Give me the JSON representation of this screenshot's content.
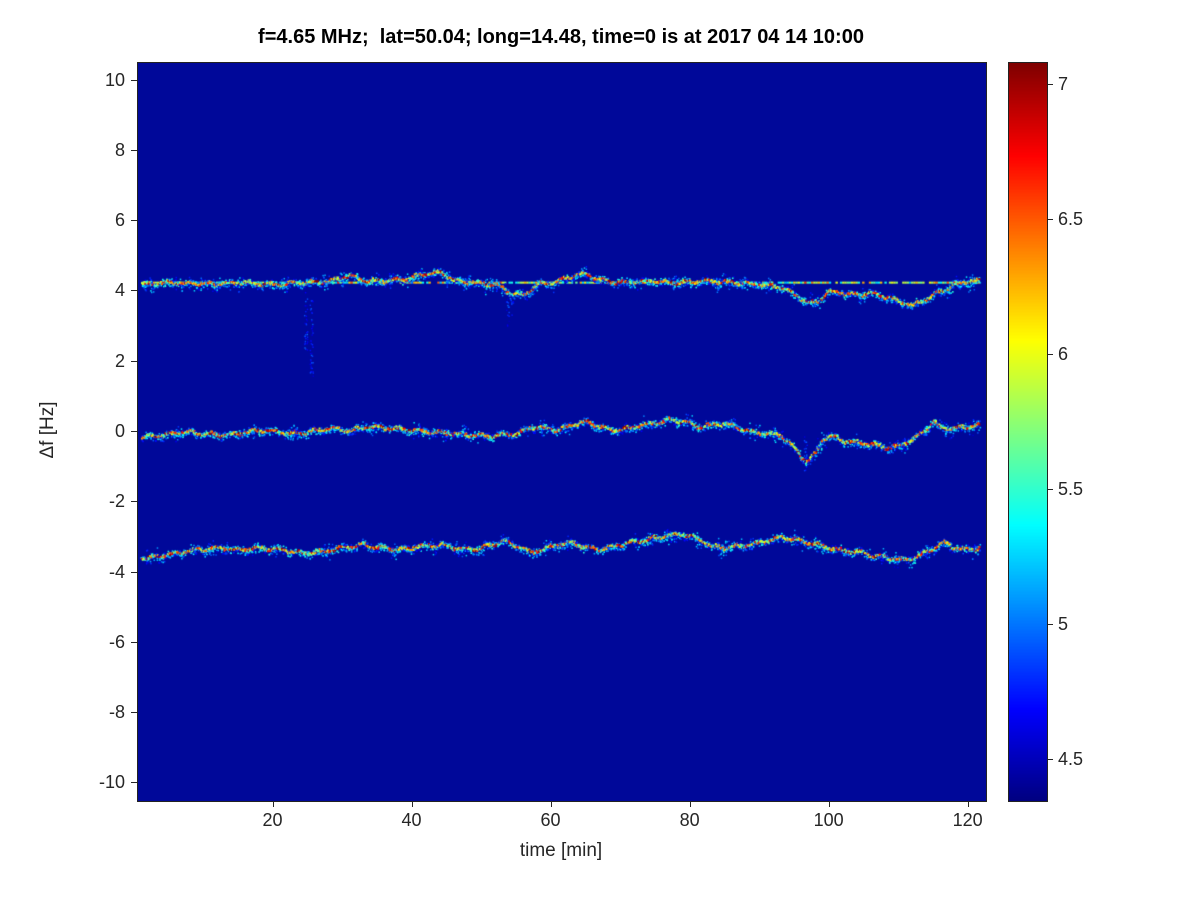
{
  "title": "f=4.65 MHz;  lat=50.04; long=14.48, time=0 is at 2017 04 14 10:00",
  "chart_data": {
    "type": "heatmap",
    "description": "Doppler shift spectrogram with three speckled traces on a dark blue background (jet colormap)",
    "xlabel": "time [min]",
    "ylabel": "Δf [Hz]",
    "xlim": [
      0.5,
      122.5
    ],
    "ylim": [
      -10.5,
      10.5
    ],
    "x_ticks": [
      20,
      40,
      60,
      80,
      100,
      120
    ],
    "y_ticks": [
      10,
      8,
      6,
      4,
      2,
      0,
      -2,
      -4,
      -6,
      -8,
      -10
    ],
    "bg_color": "#000899",
    "colorbar": {
      "min": 4.35,
      "max": 7.08,
      "ticks": [
        4.5,
        5,
        5.5,
        6,
        6.5,
        7
      ]
    },
    "traces": [
      {
        "name": "carrier-line",
        "style": "dashed",
        "points": [
          [
            1,
            4.25
          ],
          [
            121.5,
            4.25
          ]
        ]
      },
      {
        "name": "upper-trace",
        "style": "speckle",
        "points": [
          [
            1,
            4.2
          ],
          [
            5,
            4.25
          ],
          [
            10,
            4.2
          ],
          [
            15,
            4.25
          ],
          [
            20,
            4.2
          ],
          [
            25,
            4.25
          ],
          [
            28,
            4.3
          ],
          [
            31,
            4.45
          ],
          [
            33,
            4.3
          ],
          [
            36,
            4.3
          ],
          [
            39,
            4.35
          ],
          [
            42,
            4.5
          ],
          [
            44,
            4.55
          ],
          [
            46,
            4.3
          ],
          [
            49,
            4.25
          ],
          [
            52,
            4.2
          ],
          [
            54,
            3.95
          ],
          [
            56,
            3.9
          ],
          [
            58,
            4.2
          ],
          [
            61,
            4.3
          ],
          [
            63,
            4.45
          ],
          [
            65,
            4.5
          ],
          [
            67,
            4.3
          ],
          [
            70,
            4.25
          ],
          [
            74,
            4.3
          ],
          [
            78,
            4.25
          ],
          [
            82,
            4.3
          ],
          [
            86,
            4.25
          ],
          [
            90,
            4.2
          ],
          [
            93,
            4.1
          ],
          [
            95,
            3.9
          ],
          [
            97,
            3.65
          ],
          [
            98.5,
            3.75
          ],
          [
            100,
            4.0
          ],
          [
            102,
            3.95
          ],
          [
            104,
            3.9
          ],
          [
            106,
            3.95
          ],
          [
            108,
            3.85
          ],
          [
            110,
            3.7
          ],
          [
            112,
            3.6
          ],
          [
            114,
            3.8
          ],
          [
            116,
            4.0
          ],
          [
            118,
            4.2
          ],
          [
            120,
            4.3
          ],
          [
            121.5,
            4.3
          ]
        ]
      },
      {
        "name": "middle-trace",
        "style": "speckle",
        "points": [
          [
            1,
            -0.15
          ],
          [
            4,
            -0.1
          ],
          [
            7,
            0.0
          ],
          [
            10,
            -0.05
          ],
          [
            13,
            -0.1
          ],
          [
            16,
            0.0
          ],
          [
            19,
            0.05
          ],
          [
            22,
            -0.05
          ],
          [
            25,
            0.0
          ],
          [
            28,
            0.1
          ],
          [
            31,
            0.05
          ],
          [
            34,
            0.15
          ],
          [
            37,
            0.1
          ],
          [
            40,
            0.05
          ],
          [
            43,
            0.0
          ],
          [
            46,
            -0.05
          ],
          [
            49,
            -0.1
          ],
          [
            52,
            -0.1
          ],
          [
            55,
            -0.05
          ],
          [
            57,
            0.15
          ],
          [
            59,
            0.1
          ],
          [
            61,
            0.05
          ],
          [
            63,
            0.2
          ],
          [
            65,
            0.3
          ],
          [
            67,
            0.15
          ],
          [
            69,
            0.05
          ],
          [
            71,
            0.1
          ],
          [
            73,
            0.2
          ],
          [
            75,
            0.25
          ],
          [
            77,
            0.35
          ],
          [
            79,
            0.3
          ],
          [
            81,
            0.15
          ],
          [
            83,
            0.2
          ],
          [
            85,
            0.25
          ],
          [
            87,
            0.1
          ],
          [
            89,
            0.0
          ],
          [
            91,
            -0.05
          ],
          [
            93,
            -0.1
          ],
          [
            95,
            -0.5
          ],
          [
            96.5,
            -0.85
          ],
          [
            98,
            -0.6
          ],
          [
            99,
            -0.2
          ],
          [
            100,
            -0.1
          ],
          [
            102,
            -0.25
          ],
          [
            104,
            -0.3
          ],
          [
            106,
            -0.35
          ],
          [
            108,
            -0.45
          ],
          [
            110,
            -0.4
          ],
          [
            112,
            -0.2
          ],
          [
            114,
            0.1
          ],
          [
            115,
            0.3
          ],
          [
            116,
            0.1
          ],
          [
            118,
            0.1
          ],
          [
            120,
            0.15
          ],
          [
            121.5,
            0.2
          ]
        ]
      },
      {
        "name": "lower-trace",
        "style": "speckle",
        "points": [
          [
            1,
            -3.6
          ],
          [
            3,
            -3.55
          ],
          [
            6,
            -3.45
          ],
          [
            9,
            -3.35
          ],
          [
            12,
            -3.3
          ],
          [
            15,
            -3.35
          ],
          [
            18,
            -3.3
          ],
          [
            21,
            -3.35
          ],
          [
            24,
            -3.45
          ],
          [
            27,
            -3.4
          ],
          [
            30,
            -3.3
          ],
          [
            33,
            -3.2
          ],
          [
            35,
            -3.3
          ],
          [
            38,
            -3.35
          ],
          [
            41,
            -3.25
          ],
          [
            44,
            -3.2
          ],
          [
            47,
            -3.35
          ],
          [
            50,
            -3.3
          ],
          [
            53,
            -3.1
          ],
          [
            55,
            -3.25
          ],
          [
            57,
            -3.45
          ],
          [
            59,
            -3.3
          ],
          [
            61,
            -3.2
          ],
          [
            63,
            -3.15
          ],
          [
            65,
            -3.3
          ],
          [
            67,
            -3.35
          ],
          [
            69,
            -3.25
          ],
          [
            71,
            -3.15
          ],
          [
            73,
            -3.1
          ],
          [
            75,
            -3.0
          ],
          [
            77,
            -2.95
          ],
          [
            79,
            -2.9
          ],
          [
            81,
            -3.05
          ],
          [
            83,
            -3.25
          ],
          [
            85,
            -3.3
          ],
          [
            87,
            -3.25
          ],
          [
            89,
            -3.2
          ],
          [
            91,
            -3.1
          ],
          [
            93,
            -3.0
          ],
          [
            95,
            -3.05
          ],
          [
            97,
            -3.15
          ],
          [
            99,
            -3.25
          ],
          [
            101,
            -3.35
          ],
          [
            103,
            -3.4
          ],
          [
            105,
            -3.45
          ],
          [
            107,
            -3.55
          ],
          [
            109,
            -3.6
          ],
          [
            111,
            -3.65
          ],
          [
            113,
            -3.5
          ],
          [
            115,
            -3.3
          ],
          [
            116.5,
            -3.15
          ],
          [
            118,
            -3.3
          ],
          [
            119.5,
            -3.35
          ],
          [
            121.5,
            -3.3
          ]
        ]
      }
    ],
    "artifacts": [
      {
        "x": 24.6,
        "y1": 4.0,
        "y2": 2.3
      },
      {
        "x": 25.4,
        "y1": 3.9,
        "y2": 1.6
      },
      {
        "x": 53.6,
        "y1": 3.8,
        "y2": 3.0
      },
      {
        "x": 54.2,
        "y1": 4.0,
        "y2": 3.3
      },
      {
        "x": 96.5,
        "y1": -0.1,
        "y2": -1.1
      }
    ]
  }
}
